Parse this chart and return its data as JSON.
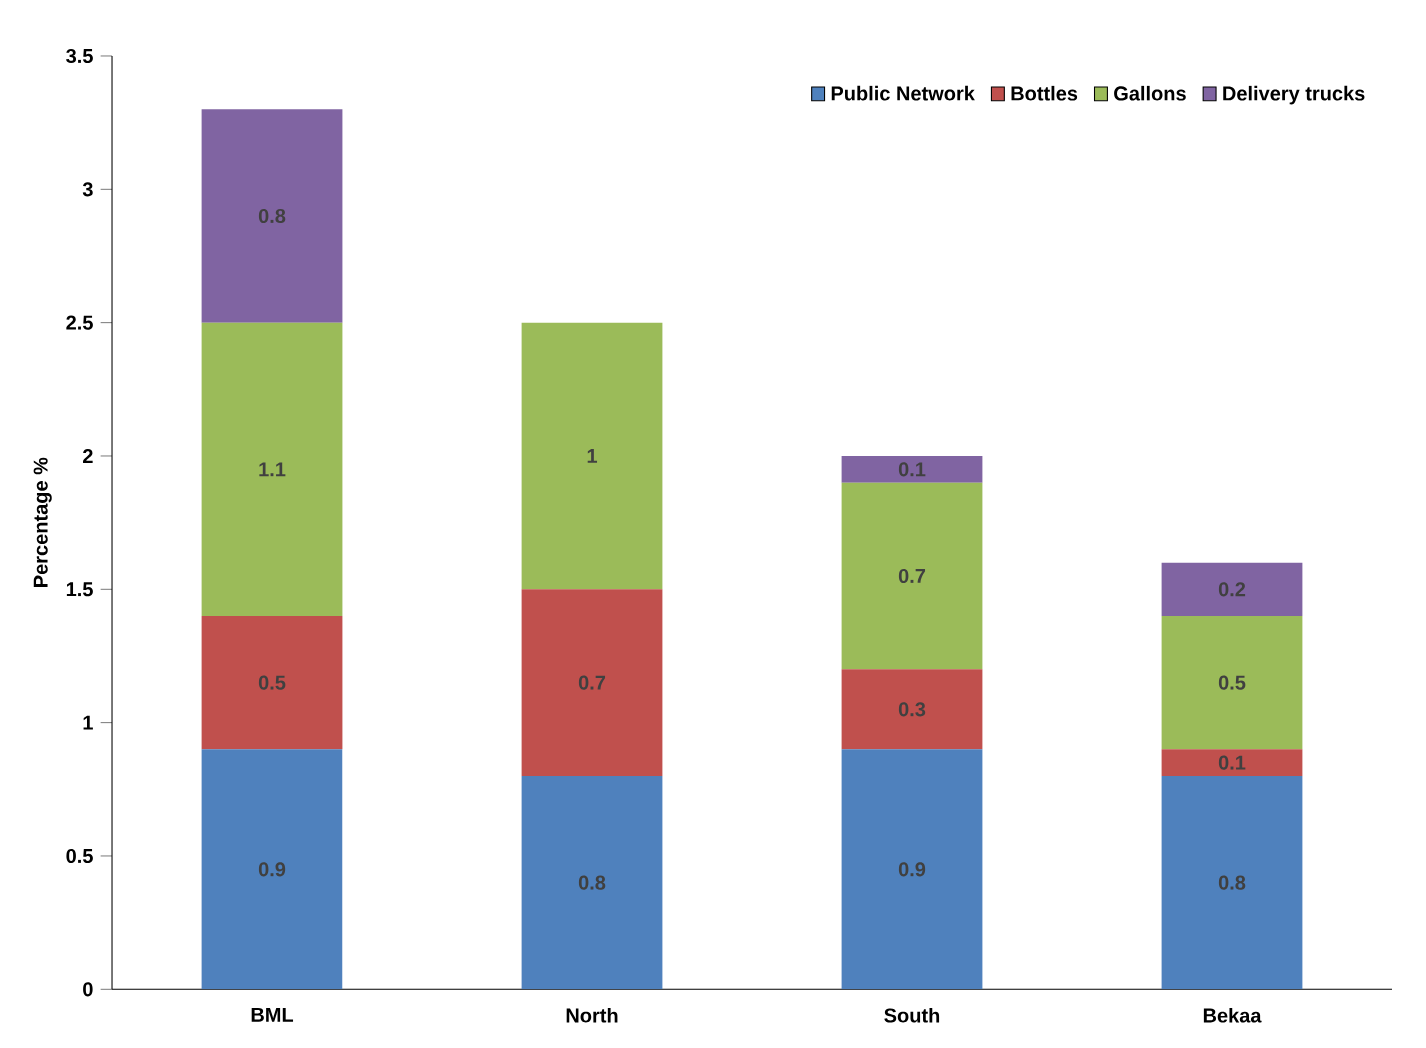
{
  "chart_data": {
    "type": "bar",
    "stacked": true,
    "ylabel": "Percentage %",
    "categories": [
      "BML",
      "North",
      "South",
      "Bekaa"
    ],
    "series": [
      {
        "name": "Public Network",
        "color": "#4f81bd",
        "values": [
          0.9,
          0.8,
          0.9,
          0.8
        ]
      },
      {
        "name": "Bottles",
        "color": "#c0504d",
        "values": [
          0.5,
          0.7,
          0.3,
          0.1
        ]
      },
      {
        "name": "Gallons",
        "color": "#9bbb59",
        "values": [
          1.1,
          1,
          0.7,
          0.5
        ]
      },
      {
        "name": "Delivery trucks",
        "color": "#8064a2",
        "values": [
          0.8,
          null,
          0.1,
          0.2
        ]
      }
    ],
    "ylim": [
      0,
      3.5
    ],
    "yticks": [
      0,
      0.5,
      1,
      1.5,
      2,
      2.5,
      3,
      3.5
    ],
    "data_labels": true,
    "grid": false,
    "legend": "top right"
  }
}
